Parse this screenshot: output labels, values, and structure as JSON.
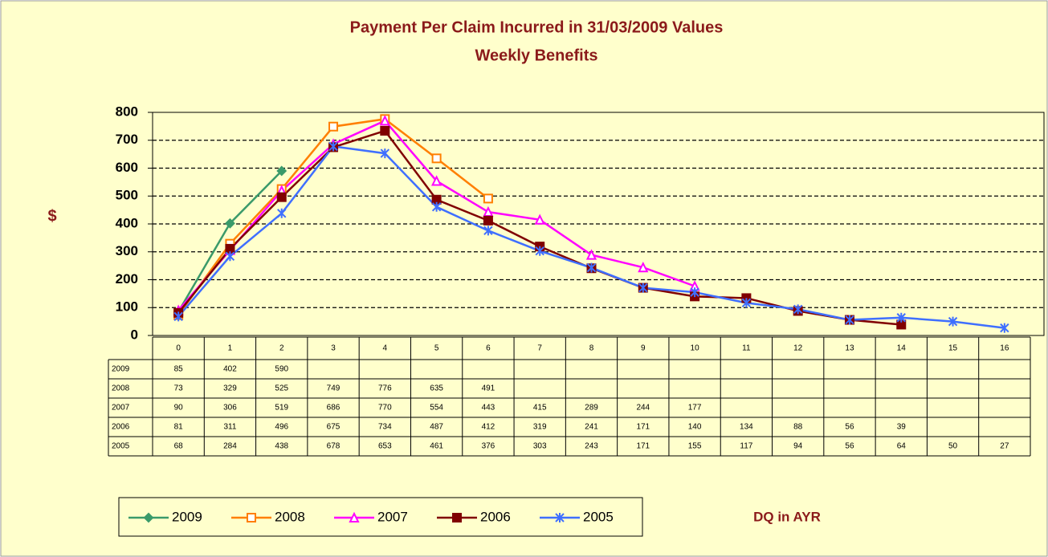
{
  "chart_data": {
    "type": "line",
    "title": "Payment Per Claim Incurred in 31/03/2009 Values",
    "subtitle": "Weekly Benefits",
    "y_label": "$",
    "x_label": "DQ in AYR",
    "categories": [
      "0",
      "1",
      "2",
      "3",
      "4",
      "5",
      "6",
      "7",
      "8",
      "9",
      "10",
      "11",
      "12",
      "13",
      "14",
      "15",
      "16"
    ],
    "ylim": [
      0,
      800
    ],
    "yticks": [
      0,
      100,
      200,
      300,
      400,
      500,
      600,
      700,
      800
    ],
    "grid": true,
    "legend": "bottom",
    "series": [
      {
        "name": "2009",
        "color": "#3a9a6a",
        "marker": "diamond",
        "values": [
          85,
          402,
          590,
          null,
          null,
          null,
          null,
          null,
          null,
          null,
          null,
          null,
          null,
          null,
          null,
          null,
          null
        ]
      },
      {
        "name": "2008",
        "color": "#ff7f00",
        "marker": "square-open",
        "values": [
          73,
          329,
          525,
          749,
          776,
          635,
          491,
          null,
          null,
          null,
          null,
          null,
          null,
          null,
          null,
          null,
          null
        ]
      },
      {
        "name": "2007",
        "color": "#ff00ff",
        "marker": "triangle",
        "values": [
          90,
          306,
          519,
          686,
          770,
          554,
          443,
          415,
          289,
          244,
          177,
          null,
          null,
          null,
          null,
          null,
          null
        ]
      },
      {
        "name": "2006",
        "color": "#800000",
        "marker": "square",
        "values": [
          81,
          311,
          496,
          675,
          734,
          487,
          412,
          319,
          241,
          171,
          140,
          134,
          88,
          56,
          39,
          null,
          null
        ]
      },
      {
        "name": "2005",
        "color": "#3f6fff",
        "marker": "asterisk",
        "values": [
          68,
          284,
          438,
          678,
          653,
          461,
          376,
          303,
          243,
          171,
          155,
          117,
          94,
          56,
          64,
          50,
          27
        ]
      }
    ]
  }
}
